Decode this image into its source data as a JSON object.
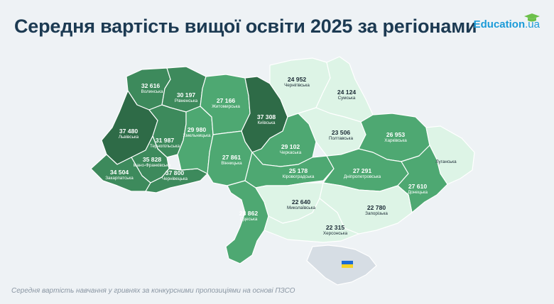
{
  "header": {
    "title": "Середня вартість вищої освіти 2025 за регіонами",
    "logo_text": "Education",
    "logo_suffix": ".ua"
  },
  "footnote": "Середня вартість навчання у гривнях за конкурсними пропозиціями на основі ПЗСО",
  "colors": {
    "darkest": "#2e6b47",
    "dark": "#3d8a5c",
    "medium": "#4ea872",
    "light": "#a8e2c0",
    "lightest": "#ddf4e6",
    "crimea": "#d6dde4",
    "title": "#1c3a52",
    "brand": "#1b9bd8"
  },
  "regions": {
    "volyn": {
      "value": "32 616",
      "name": "Волинська"
    },
    "rivne": {
      "value": "30 197",
      "name": "Рівненська"
    },
    "zhytomyr": {
      "value": "27 166",
      "name": "Житомирська"
    },
    "kyiv": {
      "value": "37 308",
      "name": "Київська"
    },
    "chernihiv": {
      "value": "24 952",
      "name": "Чернігівська"
    },
    "sumy": {
      "value": "24 124",
      "name": "Сумська"
    },
    "lviv": {
      "value": "37 480",
      "name": "Львівська"
    },
    "ternopil": {
      "value": "31 987",
      "name": "Тернопільська"
    },
    "khmelnytskyi": {
      "value": "29 980",
      "name": "Хмельницька"
    },
    "poltava": {
      "value": "23 506",
      "name": "Полтавська"
    },
    "kharkiv": {
      "value": "26 953",
      "name": "Харківська"
    },
    "ivano_frankivsk": {
      "value": "35 828",
      "name": "Івано-Франківська"
    },
    "zakarpattia": {
      "value": "34 504",
      "name": "Закарпатська"
    },
    "chernivtsi": {
      "value": "37 800",
      "name": "Чернівецька"
    },
    "vinnytsia": {
      "value": "27 861",
      "name": "Вінницька"
    },
    "cherkasy": {
      "value": "29 102",
      "name": "Черкаська"
    },
    "kirovohrad": {
      "value": "25 178",
      "name": "Кіровоградська"
    },
    "dnipro": {
      "value": "27 291",
      "name": "Дніпропетровська"
    },
    "luhansk": {
      "value": "",
      "name": "Луганська"
    },
    "donetsk": {
      "value": "27 610",
      "name": "Донецька"
    },
    "mykolaiv": {
      "value": "22 640",
      "name": "Миколаївська"
    },
    "zaporizhzhia": {
      "value": "22 780",
      "name": "Запорізька"
    },
    "odesa": {
      "value": "28 862",
      "name": "Одеська"
    },
    "kherson": {
      "value": "22 315",
      "name": "Херсонська"
    }
  }
}
